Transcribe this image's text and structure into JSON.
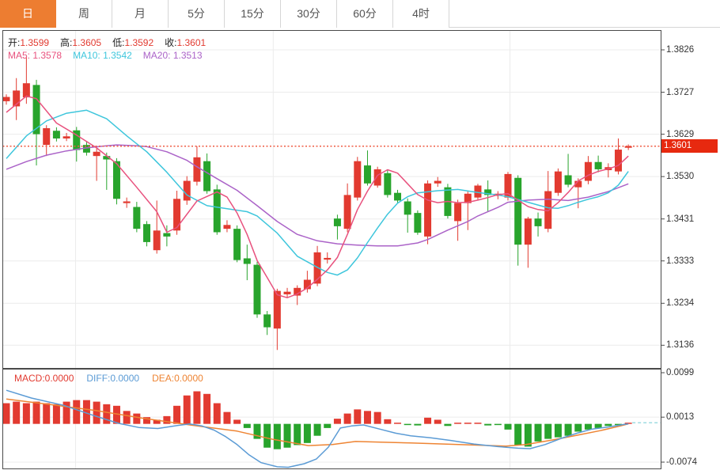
{
  "header": {
    "tabs": [
      {
        "label": "日",
        "active": true
      },
      {
        "label": "周",
        "active": false
      },
      {
        "label": "月",
        "active": false
      },
      {
        "label": "5分",
        "active": false
      },
      {
        "label": "15分",
        "active": false
      },
      {
        "label": "30分",
        "active": false
      },
      {
        "label": "60分",
        "active": false
      },
      {
        "label": "4时",
        "active": false
      }
    ]
  },
  "legend": {
    "ohlc": [
      {
        "label": "开:",
        "value": "1.3599"
      },
      {
        "label": "高:",
        "value": "1.3605"
      },
      {
        "label": "低:",
        "value": "1.3592"
      },
      {
        "label": "收:",
        "value": "1.3601"
      }
    ],
    "ma": [
      {
        "label": "MA5:",
        "value": "1.3578",
        "color": "#e8527e"
      },
      {
        "label": "MA10:",
        "value": "1.3542",
        "color": "#3ec6dc"
      },
      {
        "label": "MA20:",
        "value": "1.3513",
        "color": "#ab63c8"
      }
    ],
    "macd": [
      {
        "label": "MACD:",
        "value": "0.0000",
        "color": "#e23a30"
      },
      {
        "label": "DIFF:",
        "value": "0.0000",
        "color": "#5b9bd5"
      },
      {
        "label": "DEA:",
        "value": "0.0000",
        "color": "#ee8433"
      }
    ]
  },
  "price_tag": {
    "value": "1.3601"
  },
  "colors": {
    "up": "#e23a30",
    "down": "#28a42c",
    "ma5": "#e8527e",
    "ma10": "#3ec6dc",
    "ma20": "#ab63c8",
    "diff": "#5b9bd5",
    "dea": "#ee8433",
    "grid": "#ececec",
    "border": "#4a4a4a",
    "dotted_price_line": "#ef5b43",
    "price_tag_bg": "#e7290f",
    "tab_active_bg": "#ed7d31",
    "dashed_zero_line": "#7ecfd8"
  },
  "chart_data": {
    "type": "candlestick+macd",
    "price_axis": {
      "labels": [
        1.3826,
        1.3727,
        1.3629,
        1.353,
        1.3431,
        1.3333,
        1.3234,
        1.3136
      ],
      "max": 1.3826,
      "min": 1.3136
    },
    "macd_axis": {
      "labels": [
        0.0099,
        0.0013,
        -0.0074
      ],
      "max": 0.0099,
      "min": -0.0074
    },
    "current_price": 1.3601,
    "grid_vertical_indices": [
      6.9,
      26.6,
      50.2
    ],
    "candles": [
      [
        1.3706,
        1.3722,
        1.3698,
        1.3716
      ],
      [
        1.3694,
        1.376,
        1.3662,
        1.3731
      ],
      [
        1.3715,
        1.381,
        1.37,
        1.3748
      ],
      [
        1.3744,
        1.3756,
        1.3556,
        1.3629
      ],
      [
        1.3604,
        1.365,
        1.3578,
        1.3643
      ],
      [
        1.3637,
        1.3645,
        1.3612,
        1.3619
      ],
      [
        1.3619,
        1.3632,
        1.3613,
        1.3624
      ],
      [
        1.3638,
        1.3646,
        1.3565,
        1.3592
      ],
      [
        1.3604,
        1.3611,
        1.3579,
        1.3586
      ],
      [
        1.3578,
        1.3596,
        1.352,
        1.3588
      ],
      [
        1.3578,
        1.3586,
        1.3499,
        1.357
      ],
      [
        1.3566,
        1.3573,
        1.3465,
        1.3478
      ],
      [
        1.3468,
        1.3481,
        1.3457,
        1.3472
      ],
      [
        1.3459,
        1.3471,
        1.34,
        1.3408
      ],
      [
        1.3419,
        1.3426,
        1.3367,
        1.3377
      ],
      [
        1.3358,
        1.3474,
        1.335,
        1.3404
      ],
      [
        1.3398,
        1.3416,
        1.3367,
        1.339
      ],
      [
        1.3404,
        1.3497,
        1.3394,
        1.3478
      ],
      [
        1.3474,
        1.3531,
        1.3464,
        1.352
      ],
      [
        1.3518,
        1.3601,
        1.3509,
        1.3575
      ],
      [
        1.3566,
        1.3584,
        1.349,
        1.3496
      ],
      [
        1.35,
        1.3511,
        1.3394,
        1.34
      ],
      [
        1.3408,
        1.3428,
        1.34,
        1.3417
      ],
      [
        1.3408,
        1.3416,
        1.333,
        1.3335
      ],
      [
        1.3339,
        1.3371,
        1.3288,
        1.3326
      ],
      [
        1.3324,
        1.3331,
        1.32,
        1.3208
      ],
      [
        1.3208,
        1.3216,
        1.316,
        1.3178
      ],
      [
        1.3175,
        1.3268,
        1.3125,
        1.3263
      ],
      [
        1.3255,
        1.327,
        1.3247,
        1.3261
      ],
      [
        1.3252,
        1.3276,
        1.323,
        1.327
      ],
      [
        1.3267,
        1.331,
        1.3259,
        1.3289
      ],
      [
        1.328,
        1.3368,
        1.3274,
        1.3353
      ],
      [
        1.3336,
        1.3353,
        1.3327,
        1.334
      ],
      [
        1.3432,
        1.3441,
        1.3383,
        1.3414
      ],
      [
        1.3408,
        1.3514,
        1.34,
        1.3487
      ],
      [
        1.3481,
        1.3576,
        1.3474,
        1.3566
      ],
      [
        1.3556,
        1.3591,
        1.3509,
        1.3514
      ],
      [
        1.3509,
        1.3553,
        1.3504,
        1.3547
      ],
      [
        1.3538,
        1.3546,
        1.3481,
        1.3487
      ],
      [
        1.3492,
        1.3499,
        1.3469,
        1.3474
      ],
      [
        1.3472,
        1.3479,
        1.3399,
        1.3441
      ],
      [
        1.3445,
        1.3451,
        1.3394,
        1.3399
      ],
      [
        1.339,
        1.3521,
        1.3372,
        1.3514
      ],
      [
        1.3514,
        1.3529,
        1.3506,
        1.352
      ],
      [
        1.3505,
        1.3513,
        1.3432,
        1.3438
      ],
      [
        1.3426,
        1.3476,
        1.338,
        1.3468
      ],
      [
        1.3468,
        1.3496,
        1.3405,
        1.349
      ],
      [
        1.3481,
        1.3513,
        1.3474,
        1.3509
      ],
      [
        1.35,
        1.3521,
        1.3448,
        1.3487
      ],
      [
        1.3485,
        1.3496,
        1.3477,
        1.349
      ],
      [
        1.3481,
        1.3541,
        1.3474,
        1.3536
      ],
      [
        1.3527,
        1.3533,
        1.3322,
        1.3371
      ],
      [
        1.3371,
        1.3436,
        1.3317,
        1.3432
      ],
      [
        1.3432,
        1.3446,
        1.339,
        1.3414
      ],
      [
        1.3408,
        1.3543,
        1.34,
        1.3496
      ],
      [
        1.3492,
        1.3549,
        1.3485,
        1.3542
      ],
      [
        1.3533,
        1.3583,
        1.3505,
        1.3511
      ],
      [
        1.3505,
        1.3526,
        1.3456,
        1.352
      ],
      [
        1.352,
        1.3578,
        1.3512,
        1.3564
      ],
      [
        1.3564,
        1.3579,
        1.354,
        1.3547
      ],
      [
        1.3545,
        1.3561,
        1.3528,
        1.3552
      ],
      [
        1.3542,
        1.3619,
        1.3535,
        1.3593
      ],
      [
        1.3599,
        1.3605,
        1.3592,
        1.3601
      ]
    ],
    "ma5": [
      [
        0,
        1.368
      ],
      [
        2,
        1.3718
      ],
      [
        3,
        1.3712
      ],
      [
        5,
        1.3655
      ],
      [
        7,
        1.3627
      ],
      [
        9,
        1.3597
      ],
      [
        11,
        1.356
      ],
      [
        13,
        1.3505
      ],
      [
        15,
        1.3448
      ],
      [
        16,
        1.34
      ],
      [
        17,
        1.3411
      ],
      [
        19,
        1.3473
      ],
      [
        21,
        1.3494
      ],
      [
        22,
        1.3482
      ],
      [
        23,
        1.3445
      ],
      [
        24,
        1.3395
      ],
      [
        25,
        1.3334
      ],
      [
        26,
        1.3294
      ],
      [
        27,
        1.3254
      ],
      [
        28,
        1.3247
      ],
      [
        29,
        1.3256
      ],
      [
        30,
        1.327
      ],
      [
        31,
        1.329
      ],
      [
        32,
        1.3312
      ],
      [
        33,
        1.3341
      ],
      [
        34,
        1.3395
      ],
      [
        35,
        1.3453
      ],
      [
        36,
        1.3496
      ],
      [
        37,
        1.3533
      ],
      [
        38,
        1.3546
      ],
      [
        39,
        1.3538
      ],
      [
        40,
        1.3513
      ],
      [
        41,
        1.3488
      ],
      [
        42,
        1.3475
      ],
      [
        43,
        1.3469
      ],
      [
        44,
        1.3472
      ],
      [
        45,
        1.3469
      ],
      [
        46,
        1.347
      ],
      [
        47,
        1.3475
      ],
      [
        48,
        1.3481
      ],
      [
        49,
        1.3488
      ],
      [
        50,
        1.349
      ],
      [
        51,
        1.3475
      ],
      [
        52,
        1.346
      ],
      [
        53,
        1.3453
      ],
      [
        54,
        1.345
      ],
      [
        55,
        1.3469
      ],
      [
        56,
        1.3493
      ],
      [
        57,
        1.352
      ],
      [
        58,
        1.3533
      ],
      [
        59,
        1.3542
      ],
      [
        60,
        1.3548
      ],
      [
        61,
        1.3556
      ],
      [
        62,
        1.3578
      ]
    ],
    "ma10": [
      [
        0,
        1.3572
      ],
      [
        2,
        1.3625
      ],
      [
        4,
        1.366
      ],
      [
        6,
        1.3678
      ],
      [
        8,
        1.3685
      ],
      [
        10,
        1.3665
      ],
      [
        12,
        1.3625
      ],
      [
        14,
        1.3588
      ],
      [
        16,
        1.354
      ],
      [
        18,
        1.3487
      ],
      [
        20,
        1.3462
      ],
      [
        22,
        1.3455
      ],
      [
        24,
        1.3448
      ],
      [
        25,
        1.3438
      ],
      [
        27,
        1.3398
      ],
      [
        29,
        1.3344
      ],
      [
        31,
        1.3318
      ],
      [
        32,
        1.3306
      ],
      [
        33,
        1.33
      ],
      [
        34,
        1.3312
      ],
      [
        35,
        1.334
      ],
      [
        36,
        1.3376
      ],
      [
        37,
        1.341
      ],
      [
        38,
        1.3442
      ],
      [
        39,
        1.3468
      ],
      [
        40,
        1.3483
      ],
      [
        41,
        1.3492
      ],
      [
        43,
        1.3497
      ],
      [
        45,
        1.35
      ],
      [
        47,
        1.3493
      ],
      [
        49,
        1.3487
      ],
      [
        50,
        1.3483
      ],
      [
        52,
        1.347
      ],
      [
        54,
        1.3457
      ],
      [
        55,
        1.3456
      ],
      [
        56,
        1.3462
      ],
      [
        57,
        1.347
      ],
      [
        58,
        1.3477
      ],
      [
        59,
        1.3483
      ],
      [
        60,
        1.3492
      ],
      [
        61,
        1.351
      ],
      [
        62,
        1.3542
      ]
    ],
    "ma20": [
      [
        0,
        1.3547
      ],
      [
        2,
        1.3565
      ],
      [
        4,
        1.358
      ],
      [
        6,
        1.359
      ],
      [
        8,
        1.3597
      ],
      [
        10,
        1.3602
      ],
      [
        11,
        1.3604
      ],
      [
        13,
        1.3602
      ],
      [
        14,
        1.36
      ],
      [
        16,
        1.3588
      ],
      [
        18,
        1.3568
      ],
      [
        19,
        1.3553
      ],
      [
        21,
        1.3525
      ],
      [
        23,
        1.3498
      ],
      [
        25,
        1.3462
      ],
      [
        27,
        1.3425
      ],
      [
        29,
        1.3395
      ],
      [
        31,
        1.338
      ],
      [
        33,
        1.3373
      ],
      [
        35,
        1.337
      ],
      [
        37,
        1.3368
      ],
      [
        39,
        1.3368
      ],
      [
        41,
        1.3375
      ],
      [
        42,
        1.3383
      ],
      [
        44,
        1.3405
      ],
      [
        46,
        1.3425
      ],
      [
        47,
        1.3438
      ],
      [
        49,
        1.3458
      ],
      [
        50,
        1.347
      ],
      [
        52,
        1.3475
      ],
      [
        54,
        1.3477
      ],
      [
        56,
        1.3474
      ],
      [
        58,
        1.3482
      ],
      [
        60,
        1.3495
      ],
      [
        62,
        1.3513
      ]
    ],
    "macd_hist": [
      0.004,
      0.0043,
      0.004,
      0.0043,
      0.004,
      0.0038,
      0.0043,
      0.0046,
      0.0046,
      0.0043,
      0.0038,
      0.0035,
      0.0025,
      0.002,
      0.0013,
      0.0008,
      0.0015,
      0.0035,
      0.0055,
      0.0063,
      0.0058,
      0.004,
      0.0023,
      0.0008,
      -0.0008,
      -0.0029,
      -0.0046,
      -0.0049,
      -0.0046,
      -0.0041,
      -0.0037,
      -0.0023,
      -0.0008,
      0.001,
      0.002,
      0.0028,
      0.0025,
      0.0023,
      0.0009,
      0.0002,
      -0.0002,
      -0.0003,
      0.0012,
      0.0008,
      -0.0004,
      0.0001,
      0.0001,
      0.0001,
      -0.0003,
      -0.0002,
      -0.0011,
      -0.0041,
      -0.0044,
      -0.0034,
      -0.0029,
      -0.0026,
      -0.0023,
      -0.0015,
      -0.0011,
      -0.0008,
      -0.0004,
      -0.0001,
      0.0
    ],
    "diff_line": [
      [
        0,
        0.0065
      ],
      [
        2.5,
        0.005
      ],
      [
        5.7,
        0.0036
      ],
      [
        8.9,
        0.0015
      ],
      [
        11.2,
        0.0001
      ],
      [
        13.2,
        -0.0007
      ],
      [
        15.1,
        -0.0009
      ],
      [
        17.1,
        -0.0003
      ],
      [
        18.3,
        0.0
      ],
      [
        19.5,
        -0.0004
      ],
      [
        20.7,
        -0.0012
      ],
      [
        21.8,
        -0.0024
      ],
      [
        23,
        -0.004
      ],
      [
        24.2,
        -0.006
      ],
      [
        25.4,
        -0.0075
      ],
      [
        27,
        -0.0083
      ],
      [
        28.1,
        -0.0084
      ],
      [
        29.7,
        -0.0077
      ],
      [
        30.9,
        -0.0068
      ],
      [
        32.1,
        -0.0045
      ],
      [
        33.3,
        -0.0008
      ],
      [
        34.4,
        -0.0004
      ],
      [
        35.6,
        -0.0002
      ],
      [
        37.2,
        -0.001
      ],
      [
        38.8,
        -0.0018
      ],
      [
        40.3,
        -0.0023
      ],
      [
        42.3,
        -0.0027
      ],
      [
        44.3,
        -0.0032
      ],
      [
        46.6,
        -0.0039
      ],
      [
        49,
        -0.0044
      ],
      [
        51,
        -0.0047
      ],
      [
        52.2,
        -0.0048
      ],
      [
        53.7,
        -0.004
      ],
      [
        55.3,
        -0.0028
      ],
      [
        56.9,
        -0.0018
      ],
      [
        58.4,
        -0.001
      ],
      [
        60,
        -0.0006
      ],
      [
        61.6,
        -0.0001
      ],
      [
        62,
        0.0
      ]
    ],
    "dea_line": [
      [
        0,
        0.0048
      ],
      [
        4.1,
        0.0038
      ],
      [
        8.9,
        0.0026
      ],
      [
        13.6,
        0.0011
      ],
      [
        18.3,
        -0.0002
      ],
      [
        23,
        -0.0014
      ],
      [
        26.6,
        -0.003
      ],
      [
        30.1,
        -0.0042
      ],
      [
        32.5,
        -0.004
      ],
      [
        34.8,
        -0.0034
      ],
      [
        40.3,
        -0.0037
      ],
      [
        46.6,
        -0.0041
      ],
      [
        49.8,
        -0.0043
      ],
      [
        51.8,
        -0.004
      ],
      [
        54.5,
        -0.0031
      ],
      [
        56.9,
        -0.0022
      ],
      [
        59.2,
        -0.0013
      ],
      [
        61.2,
        -0.0004
      ],
      [
        62,
        0.0
      ]
    ]
  }
}
